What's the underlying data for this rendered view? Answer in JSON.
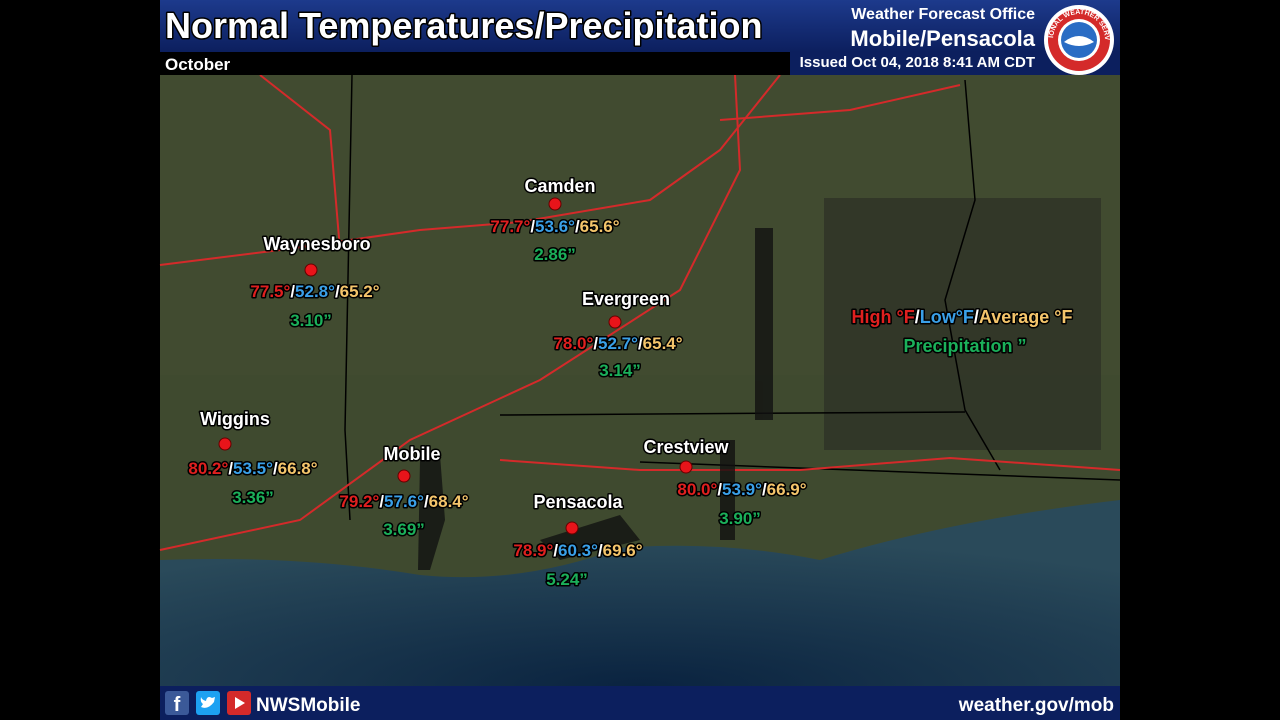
{
  "header": {
    "title": "Normal Temperatures/Precipitation",
    "month": "October",
    "office_line": "Weather Forecast Office",
    "office_name": "Mobile/Pensacola",
    "issued": "Issued Oct 04, 2018 8:41 AM CDT",
    "logo_text": "NATIONAL WEATHER SERVICE"
  },
  "separator": "/",
  "stations": [
    {
      "name": "Camden",
      "high": "77.7°",
      "low": "53.6°",
      "average": "65.6°",
      "precip": "2.86”"
    },
    {
      "name": "Waynesboro",
      "high": "77.5°",
      "low": "52.8°",
      "average": "65.2°",
      "precip": "3.10”"
    },
    {
      "name": "Evergreen",
      "high": "78.0°",
      "low": "52.7°",
      "average": "65.4°",
      "precip": "3.14”"
    },
    {
      "name": "Wiggins",
      "high": "80.2°",
      "low": "53.5°",
      "average": "66.8°",
      "precip": "3.36”"
    },
    {
      "name": "Mobile",
      "high": "79.2°",
      "low": "57.6°",
      "average": "68.4°",
      "precip": "3.69”"
    },
    {
      "name": "Pensacola",
      "high": "78.9°",
      "low": "60.3°",
      "average": "69.6°",
      "precip": "5.24”"
    },
    {
      "name": "Crestview",
      "high": "80.0°",
      "low": "53.9°",
      "average": "66.9°",
      "precip": "3.90”"
    }
  ],
  "legend": {
    "high": "High °F",
    "low": "Low°F",
    "average": "Average °F",
    "precip": "Precipitation ”"
  },
  "footer": {
    "facebook_icon": "f",
    "handle": "NWSMobile",
    "url": "weather.gov/mob"
  }
}
